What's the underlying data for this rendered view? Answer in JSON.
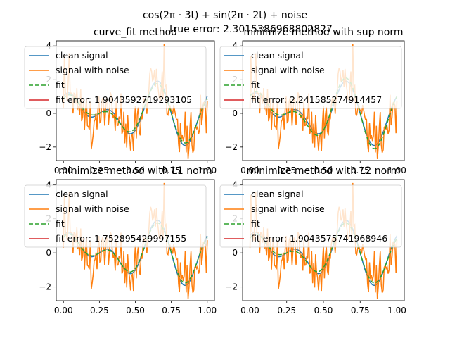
{
  "figure": {
    "suptitle": "cos(2π · 3t) + sin(2π · 2t) + noise",
    "true_error_label": "true error: 2.3015386968802827"
  },
  "chart_data": [
    {
      "type": "line",
      "title": "curve_fit method",
      "xlim": [
        -0.05,
        1.05
      ],
      "ylim": [
        -2.8,
        4.3
      ],
      "xticks": [
        0.0,
        0.25,
        0.5,
        0.75,
        1.0
      ],
      "xtick_labels": [
        "0.00",
        "0.25",
        "0.50",
        "0.75",
        "1.00"
      ],
      "yticks": [
        -2,
        0,
        2,
        4
      ],
      "ytick_labels": [
        "−2",
        "0",
        "2",
        "4"
      ],
      "legend": {
        "placement": "upper-left",
        "entries": [
          "clean signal",
          "signal with noise",
          "fit",
          "fit error: 1.9043592719293105"
        ]
      },
      "fit": {
        "a3": 0.85,
        "a2": 1.0
      }
    },
    {
      "type": "line",
      "title": "minimize method with sup norm",
      "xlim": [
        -0.05,
        1.05
      ],
      "ylim": [
        -2.8,
        4.3
      ],
      "xticks": [
        0.0,
        0.25,
        0.5,
        0.75,
        1.0
      ],
      "xtick_labels": [
        "0.00",
        "0.25",
        "0.50",
        "0.75",
        "1.00"
      ],
      "yticks": [
        -2,
        0,
        2,
        4
      ],
      "ytick_labels": [
        "−2",
        "0",
        "2",
        "4"
      ],
      "legend": {
        "placement": "upper-left",
        "entries": [
          "clean signal",
          "signal with noise",
          "fit",
          "fit error: 2.241585274914457"
        ]
      },
      "fit": {
        "a3": 1.0,
        "a2": 1.2
      }
    },
    {
      "type": "line",
      "title": "minimize method with L1 norm",
      "xlim": [
        -0.05,
        1.05
      ],
      "ylim": [
        -2.8,
        4.3
      ],
      "xticks": [
        0.0,
        0.25,
        0.5,
        0.75,
        1.0
      ],
      "xtick_labels": [
        "0.00",
        "0.25",
        "0.50",
        "0.75",
        "1.00"
      ],
      "yticks": [
        -2,
        0,
        2,
        4
      ],
      "ytick_labels": [
        "−2",
        "0",
        "2",
        "4"
      ],
      "legend": {
        "placement": "upper-left",
        "entries": [
          "clean signal",
          "signal with noise",
          "fit",
          "fit error: 1.752895429997155"
        ]
      },
      "fit": {
        "a3": 0.9,
        "a2": 0.95
      }
    },
    {
      "type": "line",
      "title": "minimize method with L2 norm",
      "xlim": [
        -0.05,
        1.05
      ],
      "ylim": [
        -2.8,
        4.3
      ],
      "xticks": [
        0.0,
        0.25,
        0.5,
        0.75,
        1.0
      ],
      "xtick_labels": [
        "0.00",
        "0.25",
        "0.50",
        "0.75",
        "1.00"
      ],
      "yticks": [
        -2,
        0,
        2,
        4
      ],
      "ytick_labels": [
        "−2",
        "0",
        "2",
        "4"
      ],
      "legend": {
        "placement": "upper-left",
        "entries": [
          "clean signal",
          "signal with noise",
          "fit",
          "fit error: 1.9043575741968946"
        ]
      },
      "fit": {
        "a3": 0.85,
        "a2": 1.0
      }
    }
  ],
  "series_style": {
    "clean": {
      "color": "#1f77b4",
      "dash": "none"
    },
    "noisy": {
      "color": "#ff7f0e",
      "dash": "none"
    },
    "fit": {
      "color": "#2ca02c",
      "dash": "6,3"
    },
    "error": {
      "color": "#d62728",
      "dash": "none"
    }
  }
}
